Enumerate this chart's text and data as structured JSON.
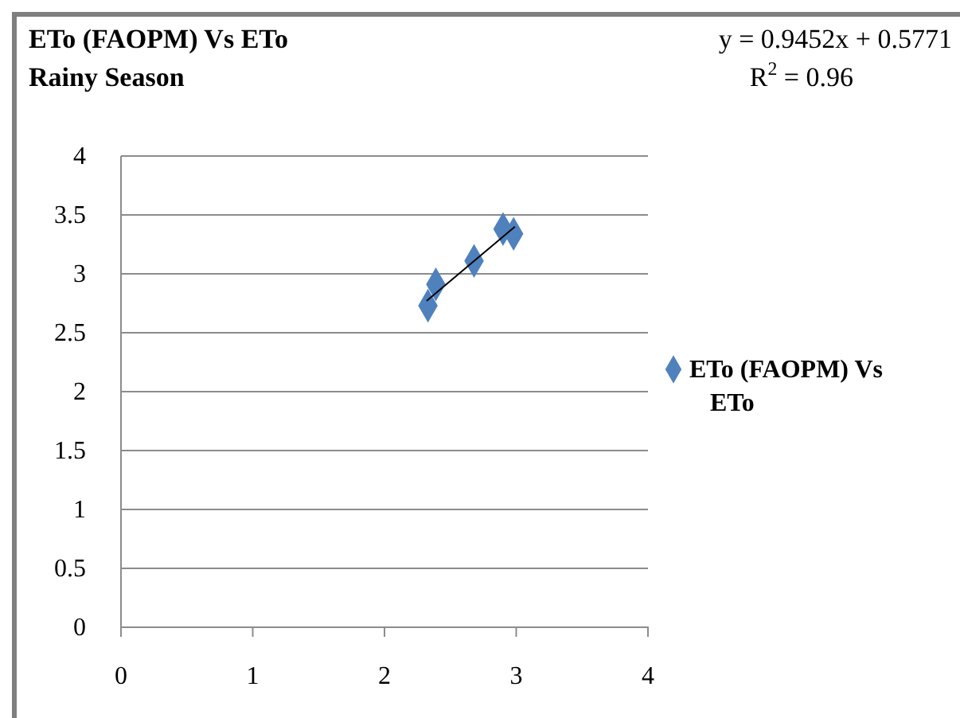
{
  "chart_data": {
    "type": "scatter",
    "title": "ETo (FAOPM) Vs ETo",
    "subtitle": "Rainy Season",
    "annotations": [
      "y = 0.9452x + 0.5771",
      "R$^{2}$ = 0.96"
    ],
    "xlim": [
      0,
      4
    ],
    "xticks": [
      0,
      1,
      2,
      3,
      4
    ],
    "ylim": [
      0,
      4
    ],
    "yticks": [
      0,
      0.5,
      1,
      1.5,
      2,
      2.5,
      3,
      3.5,
      4
    ],
    "grid": "y",
    "legend": "right",
    "marker": "diamond",
    "series": [
      {
        "name": "ETo (FAOPM) Vs ETo",
        "color": "#4f81bd",
        "x": [
          2.33,
          2.39,
          2.68,
          2.9,
          2.98
        ],
        "values": [
          2.73,
          2.91,
          3.11,
          3.38,
          3.34
        ]
      },
      {
        "type": "line",
        "color": "#000000",
        "x": [
          2.32,
          2.99
        ],
        "values": [
          2.77,
          3.4
        ],
        "line_style": "solid",
        "marker": "none"
      }
    ]
  }
}
